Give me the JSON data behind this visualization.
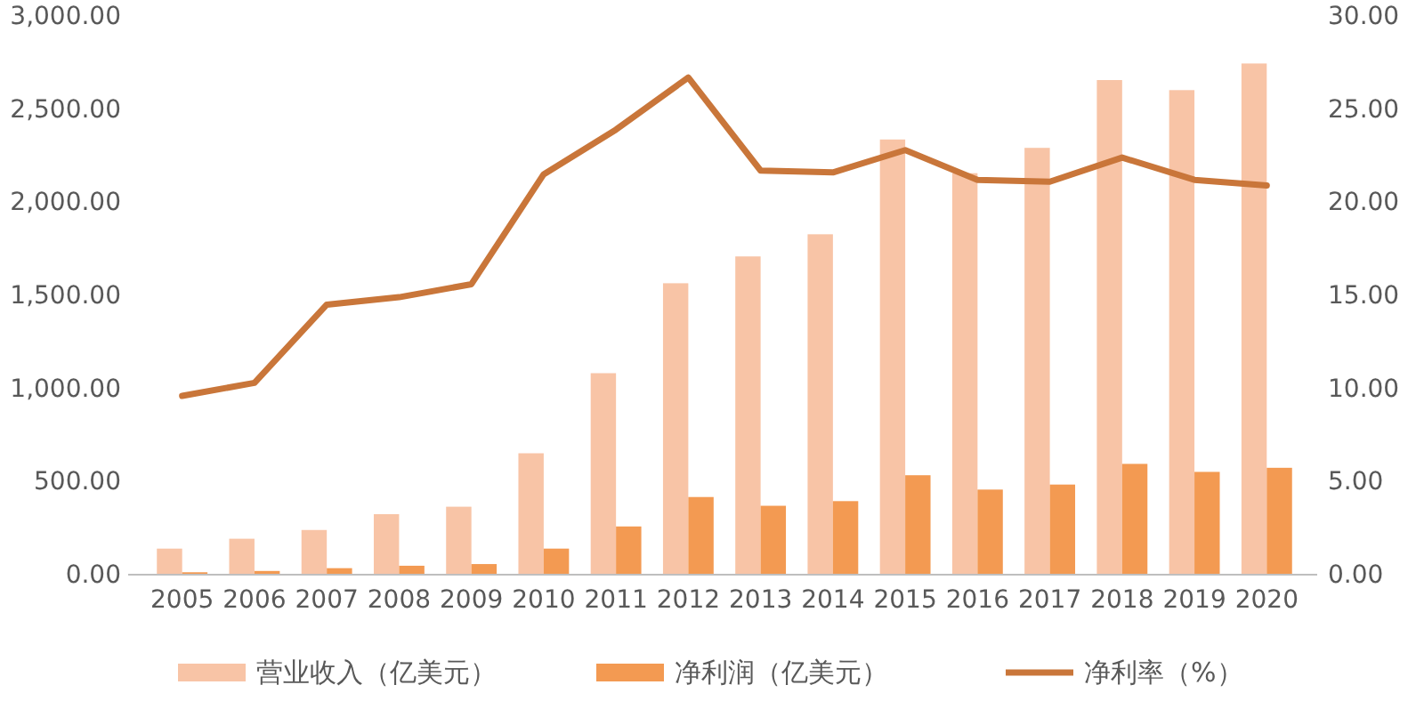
{
  "chart_data": {
    "type": "bar",
    "categories": [
      "2005",
      "2006",
      "2007",
      "2008",
      "2009",
      "2010",
      "2011",
      "2012",
      "2013",
      "2014",
      "2015",
      "2016",
      "2017",
      "2018",
      "2019",
      "2020"
    ],
    "series": [
      {
        "name": "营业收入（亿美元）",
        "color": "#f8c4a6",
        "values": [
          140,
          193,
          240,
          325,
          365,
          652,
          1082,
          1565,
          1709,
          1828,
          2337,
          2156,
          2292,
          2656,
          2602,
          2745
        ]
      },
      {
        "name": "净利润（亿美元）",
        "color": "#f39a52",
        "values": [
          13,
          20,
          35,
          48,
          57,
          140,
          259,
          417,
          370,
          395,
          534,
          457,
          484,
          595,
          552,
          574
        ]
      },
      {
        "name": "净利率（%）",
        "type": "line",
        "axis": "y2",
        "color": "#c9763a",
        "values": [
          9.6,
          10.3,
          14.5,
          14.9,
          15.6,
          21.5,
          23.9,
          26.7,
          21.7,
          21.6,
          22.8,
          21.2,
          21.1,
          22.4,
          21.2,
          20.9
        ]
      }
    ],
    "ylim": [
      0,
      3000
    ],
    "yticks": [
      {
        "value": 0,
        "label": "0.00"
      },
      {
        "value": 500,
        "label": "500.00"
      },
      {
        "value": 1000,
        "label": "1,000.00"
      },
      {
        "value": 1500,
        "label": "1,500.00"
      },
      {
        "value": 2000,
        "label": "2,000.00"
      },
      {
        "value": 2500,
        "label": "2,500.00"
      },
      {
        "value": 3000,
        "label": "3,000.00"
      }
    ],
    "y2lim": [
      0,
      30
    ],
    "y2ticks": [
      {
        "value": 0,
        "label": "0.00"
      },
      {
        "value": 5,
        "label": "5.00"
      },
      {
        "value": 10,
        "label": "10.00"
      },
      {
        "value": 15,
        "label": "15.00"
      },
      {
        "value": 20,
        "label": "20.00"
      },
      {
        "value": 25,
        "label": "25.00"
      },
      {
        "value": 30,
        "label": "30.00"
      }
    ],
    "legend": "bottom",
    "line_style": "solid",
    "marker": "none"
  }
}
